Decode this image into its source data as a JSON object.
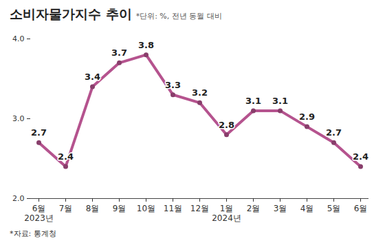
{
  "chart_data": {
    "type": "line",
    "title": "소비자물가지수 추이",
    "subtitle": "*단위: %, 전년 동월 대비",
    "source": "*자료: 통계청",
    "categories": [
      "6월\n2023년",
      "7월",
      "8월",
      "9월",
      "10월",
      "11월",
      "12월",
      "1월\n2024년",
      "2월",
      "3월",
      "4월",
      "5월",
      "6월"
    ],
    "values": [
      2.7,
      2.4,
      3.4,
      3.7,
      3.8,
      3.3,
      3.2,
      2.8,
      3.1,
      3.1,
      2.9,
      2.7,
      2.4
    ],
    "color": "#b5538e",
    "marker": "circle",
    "ylim": [
      2,
      4
    ],
    "yticks": [
      {
        "value": 2,
        "label": "2.0"
      },
      {
        "value": 3,
        "label": "3.0"
      },
      {
        "value": 4,
        "label": "4.0"
      }
    ],
    "grid": false,
    "data_labels": true
  }
}
